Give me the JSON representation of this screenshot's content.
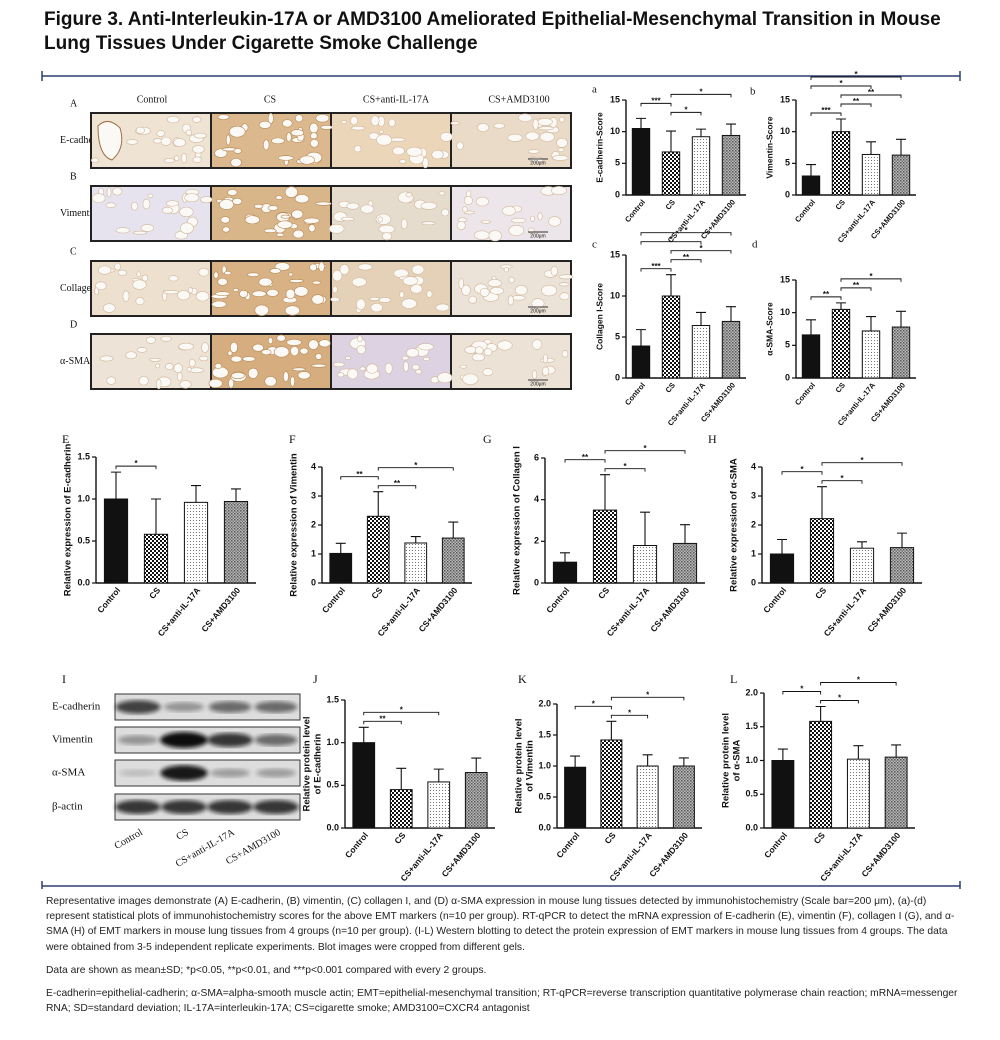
{
  "title": "Figure 3. Anti-Interleukin-17A or AMD3100 Ameliorated Epithelial-Mesenchymal Transition in Mouse Lung Tissues Under Cigarette Smoke Challenge",
  "histology": {
    "columns": [
      "Control",
      "CS",
      "CS+anti-IL-17A",
      "CS+AMD3100"
    ],
    "rows": [
      {
        "letter": "A",
        "label": "E-cadherin"
      },
      {
        "letter": "B",
        "label": "Vimentin"
      },
      {
        "letter": "C",
        "label": "Collagen I"
      },
      {
        "letter": "D",
        "label": "α-SMA"
      }
    ],
    "scale_bar": "200μm"
  },
  "blot": {
    "panel": "I",
    "rows": [
      "E-cadherin",
      "Vimentin",
      "α-SMA",
      "β-actin"
    ],
    "categories": [
      "Control",
      "CS",
      "CS+anti-IL-17A",
      "CS+AMD3100"
    ]
  },
  "chart_data": [
    {
      "type": "bar",
      "panel": "a",
      "ylabel": "E-cadherin-Score",
      "categories": [
        "Control",
        "CS",
        "CS+anti-IL-17A",
        "CS+AMD3100"
      ],
      "values": [
        10.5,
        6.8,
        9.2,
        9.4
      ],
      "errors": [
        1.6,
        3.3,
        1.2,
        1.8
      ],
      "ylim": [
        0,
        15
      ],
      "yticks": [
        0,
        5,
        10,
        15
      ],
      "significance": [
        {
          "pair": [
            1,
            2
          ],
          "label": "*"
        },
        {
          "pair": [
            0,
            1
          ],
          "label": "***"
        },
        {
          "pair": [
            1,
            3
          ],
          "label": "*"
        }
      ]
    },
    {
      "type": "bar",
      "panel": "b",
      "ylabel": "Vimentin-Score",
      "categories": [
        "Control",
        "CS",
        "CS+anti-IL-17A",
        "CS+AMD3100"
      ],
      "values": [
        3.0,
        10.0,
        6.4,
        6.3
      ],
      "errors": [
        1.8,
        2.0,
        2.0,
        2.5
      ],
      "ylim": [
        0,
        15
      ],
      "yticks": [
        0,
        5,
        10,
        15
      ],
      "significance": [
        {
          "pair": [
            0,
            1
          ],
          "label": "***"
        },
        {
          "pair": [
            1,
            2
          ],
          "label": "**"
        },
        {
          "pair": [
            1,
            3
          ],
          "label": "**"
        },
        {
          "pair": [
            0,
            2
          ],
          "label": "*"
        },
        {
          "pair": [
            0,
            3
          ],
          "label": "*"
        }
      ]
    },
    {
      "type": "bar",
      "panel": "c",
      "ylabel": "Collagen I-Score",
      "categories": [
        "Control",
        "CS",
        "CS+anti-IL-17A",
        "CS+AMD3100"
      ],
      "values": [
        3.9,
        10.0,
        6.4,
        6.9
      ],
      "errors": [
        2.0,
        2.6,
        1.6,
        1.8
      ],
      "ylim": [
        0,
        15
      ],
      "yticks": [
        0,
        5,
        10,
        15
      ],
      "significance": [
        {
          "pair": [
            0,
            1
          ],
          "label": "***"
        },
        {
          "pair": [
            1,
            2
          ],
          "label": "**"
        },
        {
          "pair": [
            1,
            3
          ],
          "label": "*"
        },
        {
          "pair": [
            0,
            2
          ],
          "label": "*"
        },
        {
          "pair": [
            0,
            3
          ],
          "label": "*"
        }
      ]
    },
    {
      "type": "bar",
      "panel": "d",
      "ylabel": "α-SMA-Score",
      "categories": [
        "Control",
        "CS",
        "CS+anti-IL-17A",
        "CS+AMD3100"
      ],
      "values": [
        6.6,
        10.5,
        7.2,
        7.8
      ],
      "errors": [
        2.3,
        1.0,
        2.2,
        2.4
      ],
      "ylim": [
        0,
        15
      ],
      "yticks": [
        0,
        5,
        10,
        15
      ],
      "significance": [
        {
          "pair": [
            0,
            1
          ],
          "label": "**"
        },
        {
          "pair": [
            1,
            2
          ],
          "label": "**"
        },
        {
          "pair": [
            1,
            3
          ],
          "label": "*"
        }
      ]
    },
    {
      "type": "bar",
      "panel": "E",
      "ylabel": "Relative expression of E-cadherin",
      "categories": [
        "Control",
        "CS",
        "CS+anti-IL-17A",
        "CS+AMD3100"
      ],
      "values": [
        1.0,
        0.58,
        0.96,
        0.97
      ],
      "errors": [
        0.32,
        0.42,
        0.2,
        0.15
      ],
      "ylim": [
        0,
        1.5
      ],
      "yticks": [
        {
          "value": 0,
          "label": "0.0"
        },
        0.5,
        {
          "value": 1,
          "label": "1.0"
        },
        1.5
      ],
      "significance": [
        {
          "pair": [
            0,
            1
          ],
          "label": "*"
        }
      ]
    },
    {
      "type": "bar",
      "panel": "F",
      "ylabel": "Relative expression of Vimentin",
      "categories": [
        "Control",
        "CS",
        "CS+anti-IL-17A",
        "CS+AMD3100"
      ],
      "values": [
        1.02,
        2.3,
        1.38,
        1.55
      ],
      "errors": [
        0.35,
        0.85,
        0.22,
        0.55
      ],
      "ylim": [
        0,
        4
      ],
      "yticks": [
        0,
        1,
        2,
        3,
        4
      ],
      "significance": [
        {
          "pair": [
            1,
            2
          ],
          "label": "**"
        },
        {
          "pair": [
            0,
            1
          ],
          "label": "**"
        },
        {
          "pair": [
            1,
            3
          ],
          "label": "*"
        }
      ]
    },
    {
      "type": "bar",
      "panel": "G",
      "ylabel": "Relative expression of Collagen I",
      "categories": [
        "Control",
        "CS",
        "CS+anti-IL-17A",
        "CS+AMD3100"
      ],
      "values": [
        1.0,
        3.5,
        1.8,
        1.9
      ],
      "errors": [
        0.45,
        1.7,
        1.6,
        0.9
      ],
      "ylim": [
        0,
        6
      ],
      "yticks": [
        0,
        2,
        4,
        6
      ],
      "significance": [
        {
          "pair": [
            1,
            2
          ],
          "label": "*"
        },
        {
          "pair": [
            0,
            1
          ],
          "label": "**"
        },
        {
          "pair": [
            1,
            3
          ],
          "label": "*"
        }
      ]
    },
    {
      "type": "bar",
      "panel": "H",
      "ylabel": "Relative expression of  α-SMA",
      "categories": [
        "Control",
        "CS",
        "CS+anti-IL-17A",
        "CS+AMD3100"
      ],
      "values": [
        1.0,
        2.22,
        1.2,
        1.22
      ],
      "errors": [
        0.5,
        1.1,
        0.22,
        0.5
      ],
      "ylim": [
        0,
        4
      ],
      "yticks": [
        0,
        1,
        2,
        3,
        4
      ],
      "significance": [
        {
          "pair": [
            1,
            2
          ],
          "label": "*"
        },
        {
          "pair": [
            0,
            1
          ],
          "label": "*"
        },
        {
          "pair": [
            1,
            3
          ],
          "label": "*"
        }
      ]
    },
    {
      "type": "bar",
      "panel": "J",
      "ylabel": [
        "Relative protein level",
        "of E-cadherin"
      ],
      "categories": [
        "Control",
        "CS",
        "CS+anti-IL-17A",
        "CS+AMD3100"
      ],
      "values": [
        1.0,
        0.45,
        0.54,
        0.65
      ],
      "errors": [
        0.18,
        0.25,
        0.15,
        0.17
      ],
      "ylim": [
        0,
        1.5
      ],
      "yticks": [
        {
          "value": 0,
          "label": "0.0"
        },
        0.5,
        {
          "value": 1,
          "label": "1.0"
        },
        1.5
      ],
      "significance": [
        {
          "pair": [
            0,
            1
          ],
          "label": "**"
        },
        {
          "pair": [
            0,
            2
          ],
          "label": "*"
        }
      ]
    },
    {
      "type": "bar",
      "panel": "K",
      "ylabel": [
        "Relative protein level",
        "of Vimentin"
      ],
      "categories": [
        "Control",
        "CS",
        "CS+anti-IL-17A",
        "CS+AMD3100"
      ],
      "values": [
        0.98,
        1.42,
        1.0,
        1.0
      ],
      "errors": [
        0.18,
        0.3,
        0.18,
        0.13
      ],
      "ylim": [
        0,
        2
      ],
      "yticks": [
        {
          "value": 0,
          "label": "0.0"
        },
        0.5,
        {
          "value": 1,
          "label": "1.0"
        },
        1.5,
        {
          "value": 2,
          "label": "2.0"
        }
      ],
      "significance": [
        {
          "pair": [
            1,
            2
          ],
          "label": "*"
        },
        {
          "pair": [
            0,
            1
          ],
          "label": "*"
        },
        {
          "pair": [
            1,
            3
          ],
          "label": "*"
        }
      ]
    },
    {
      "type": "bar",
      "panel": "L",
      "ylabel": [
        "Relative protein level",
        "of α-SMA"
      ],
      "categories": [
        "Control",
        "CS",
        "CS+anti-IL-17A",
        "CS+AMD3100"
      ],
      "values": [
        1.0,
        1.58,
        1.02,
        1.05
      ],
      "errors": [
        0.17,
        0.22,
        0.2,
        0.18
      ],
      "ylim": [
        0,
        2
      ],
      "yticks": [
        {
          "value": 0,
          "label": "0.0"
        },
        0.5,
        {
          "value": 1,
          "label": "1.0"
        },
        1.5,
        {
          "value": 2,
          "label": "2.0"
        }
      ],
      "significance": [
        {
          "pair": [
            1,
            2
          ],
          "label": "*"
        },
        {
          "pair": [
            0,
            1
          ],
          "label": "*"
        },
        {
          "pair": [
            1,
            3
          ],
          "label": "*"
        }
      ]
    }
  ],
  "caption": [
    "Representative images demonstrate (A) E-cadherin, (B) vimentin, (C) collagen I, and (D) α-SMA expression in mouse lung tissues detected by immunohistochemistry (Scale bar=200 μm), (a)-(d) represent statistical plots of immunohistochemistry scores for the above EMT markers (n=10 per group). RT-qPCR to detect the mRNA expression of E-cadherin (E), vimentin (F), collagen I (G), and α-SMA (H) of EMT markers in mouse lung tissues from 4 groups (n=10 per group). (I-L) Western blotting to detect the protein expression of EMT markers in mouse lung tissues from 4 groups. The data were obtained from 3-5 independent replicate experiments. Blot images were cropped from different gels.",
    "Data are shown as mean±SD; *p<0.05, **p<0.01, and ***p<0.001 compared with every 2 groups.",
    "E-cadherin=epithelial-cadherin; α-SMA=alpha-smooth muscle actin; EMT=epithelial-mesenchymal transition; RT-qPCR=reverse transcription quantitative polymerase chain reaction; mRNA=messenger RNA; SD=standard deviation; IL-17A=interleukin-17A; CS=cigarette smoke; AMD3100=CXCR4 antagonist"
  ]
}
